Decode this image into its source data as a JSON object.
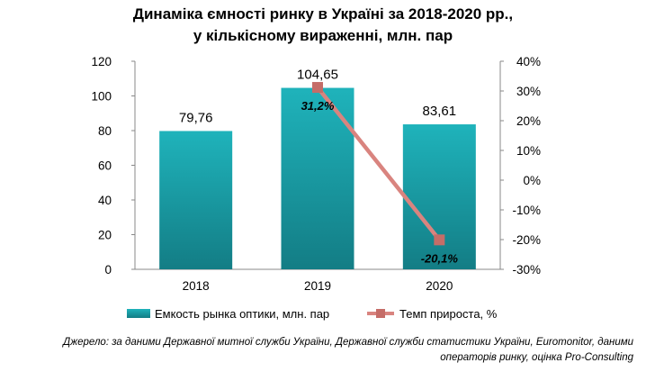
{
  "title": {
    "line1": "Динаміка ємності ринку в Україні за 2018-2020 рр.,",
    "line2": "у кількісному вираженні, млн. пар"
  },
  "source": {
    "line1": "Джерело: за даними Державної митної служби України, Державної служби статистики України, Euromonitor, даними",
    "line2": "операторів ринку, оцінка Pro-Consulting"
  },
  "colors": {
    "bar_top": "#1fb3bb",
    "bar_bottom": "#137d85",
    "line": "#d9847f",
    "marker": "#c56d68"
  },
  "chart_data": {
    "type": "bar",
    "categories": [
      "2018",
      "2019",
      "2020"
    ],
    "series": [
      {
        "name": "Емкость рынка оптики, млн. пар",
        "type": "bar",
        "axis": "left",
        "values": [
          79.76,
          104.65,
          83.61
        ],
        "labels": [
          "79,76",
          "104,65",
          "83,61"
        ]
      },
      {
        "name": "Темп прироста, %",
        "type": "line",
        "axis": "right",
        "values": [
          null,
          31.2,
          -20.1
        ],
        "labels": [
          "",
          "31,2%",
          "-20,1%"
        ]
      }
    ],
    "ylim_left": [
      0,
      120
    ],
    "yticks_left": [
      "0",
      "20",
      "40",
      "60",
      "80",
      "100",
      "120"
    ],
    "ylim_right": [
      -30,
      40
    ],
    "yticks_right": [
      "-30%",
      "-20%",
      "-10%",
      "0%",
      "10%",
      "20%",
      "30%",
      "40%"
    ],
    "grid": false,
    "legend_position": "bottom"
  }
}
